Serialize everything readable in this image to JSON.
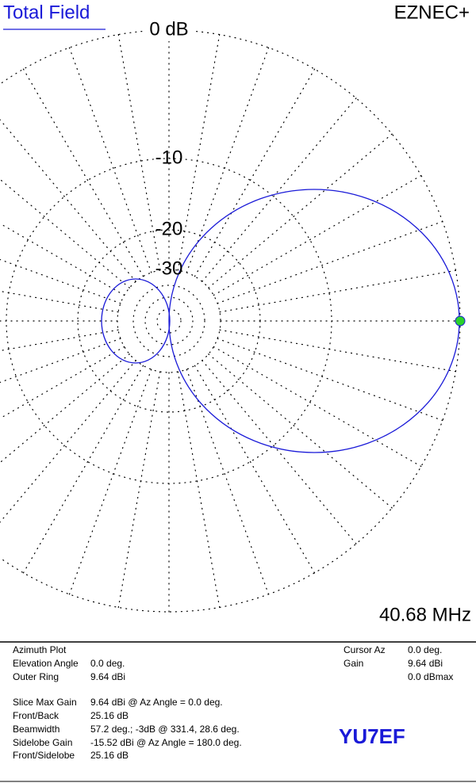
{
  "header": {
    "title": "Total Field",
    "program": "EZNEC+"
  },
  "plot": {
    "ring_labels": [
      "0 dB",
      "-10",
      "-20",
      "-30"
    ],
    "frequency": "40.68 MHz"
  },
  "info": {
    "left": [
      [
        "Azimuth Plot",
        ""
      ],
      [
        "Elevation Angle",
        "0.0 deg."
      ],
      [
        "Outer Ring",
        "9.64 dBi"
      ],
      [
        "Slice Max Gain",
        "9.64 dBi @ Az Angle = 0.0 deg."
      ],
      [
        "Front/Back",
        "25.16 dB"
      ],
      [
        "Beamwidth",
        "57.2 deg.; -3dB @ 331.4, 28.6 deg."
      ],
      [
        "Sidelobe Gain",
        "-15.52 dBi @ Az Angle = 180.0 deg."
      ],
      [
        "Front/Sidelobe",
        "25.16 dB"
      ]
    ],
    "right": [
      [
        "Cursor Az",
        "0.0 deg."
      ],
      [
        "Gain",
        "9.64 dBi"
      ]
    ],
    "right_extra": "0.0 dBmax"
  },
  "callsign": "YU7EF"
}
